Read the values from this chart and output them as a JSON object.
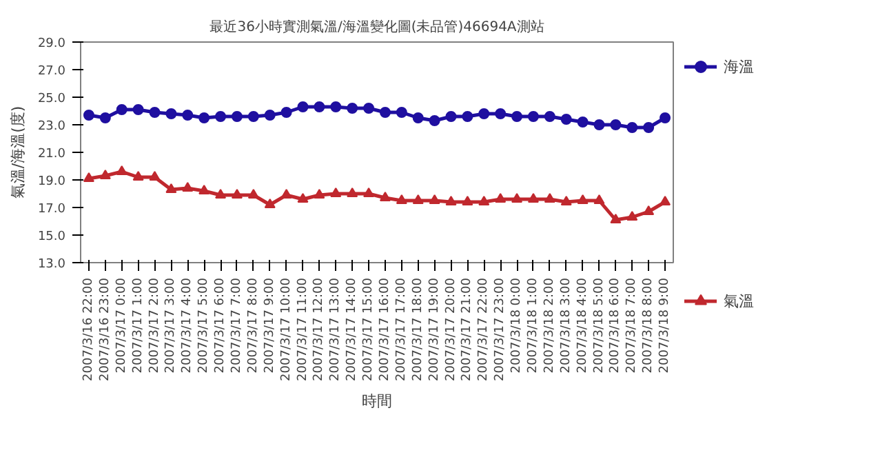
{
  "chart_data": {
    "type": "line",
    "title": "最近36小時實測氣溫/海溫變化圖(未品管)46694A測站",
    "xlabel": "時間",
    "ylabel": "氣溫/海溫(度)",
    "categories": [
      "2007/3/16 22:00",
      "2007/3/16 23:00",
      "2007/3/17 0:00",
      "2007/3/17 1:00",
      "2007/3/17 2:00",
      "2007/3/17 3:00",
      "2007/3/17 4:00",
      "2007/3/17 5:00",
      "2007/3/17 6:00",
      "2007/3/17 7:00",
      "2007/3/17 8:00",
      "2007/3/17 9:00",
      "2007/3/17 10:00",
      "2007/3/17 11:00",
      "2007/3/17 12:00",
      "2007/3/17 13:00",
      "2007/3/17 14:00",
      "2007/3/17 15:00",
      "2007/3/17 16:00",
      "2007/3/17 17:00",
      "2007/3/17 18:00",
      "2007/3/17 19:00",
      "2007/3/17 20:00",
      "2007/3/17 21:00",
      "2007/3/17 22:00",
      "2007/3/17 23:00",
      "2007/3/18 0:00",
      "2007/3/18 1:00",
      "2007/3/18 2:00",
      "2007/3/18 3:00",
      "2007/3/18 4:00",
      "2007/3/18 5:00",
      "2007/3/18 6:00",
      "2007/3/18 7:00",
      "2007/3/18 8:00",
      "2007/3/18 9:00"
    ],
    "series": [
      {
        "name": "海溫",
        "color": "#1f0fa0",
        "marker": "circle",
        "values": [
          23.7,
          23.5,
          24.1,
          24.1,
          23.9,
          23.8,
          23.7,
          23.5,
          23.6,
          23.6,
          23.6,
          23.7,
          23.9,
          24.3,
          24.3,
          24.3,
          24.2,
          24.2,
          23.9,
          23.9,
          23.5,
          23.3,
          23.6,
          23.6,
          23.8,
          23.8,
          23.6,
          23.6,
          23.6,
          23.4,
          23.2,
          23.0,
          23.0,
          22.8,
          22.8,
          23.5
        ]
      },
      {
        "name": "氣溫",
        "color": "#c0282e",
        "marker": "triangle",
        "values": [
          19.1,
          19.3,
          19.6,
          19.2,
          19.2,
          18.3,
          18.4,
          18.2,
          17.9,
          17.9,
          17.9,
          17.2,
          17.9,
          17.6,
          17.9,
          18.0,
          18.0,
          18.0,
          17.7,
          17.5,
          17.5,
          17.5,
          17.4,
          17.4,
          17.4,
          17.6,
          17.6,
          17.6,
          17.6,
          17.4,
          17.5,
          17.5,
          16.1,
          16.3,
          16.7,
          17.4
        ]
      }
    ],
    "ylim": [
      13,
      29
    ],
    "yticks": [
      {
        "value": 13,
        "label": "13.0"
      },
      {
        "value": 15,
        "label": "15.0"
      },
      {
        "value": 17,
        "label": "17.0"
      },
      {
        "value": 19,
        "label": "19.0"
      },
      {
        "value": 21,
        "label": "21.0"
      },
      {
        "value": 23,
        "label": "23.0"
      },
      {
        "value": 25,
        "label": "25.0"
      },
      {
        "value": 27,
        "label": "27.0"
      },
      {
        "value": 29,
        "label": "29.0"
      }
    ],
    "grid": false,
    "legend": "right",
    "line_style": "solid"
  }
}
